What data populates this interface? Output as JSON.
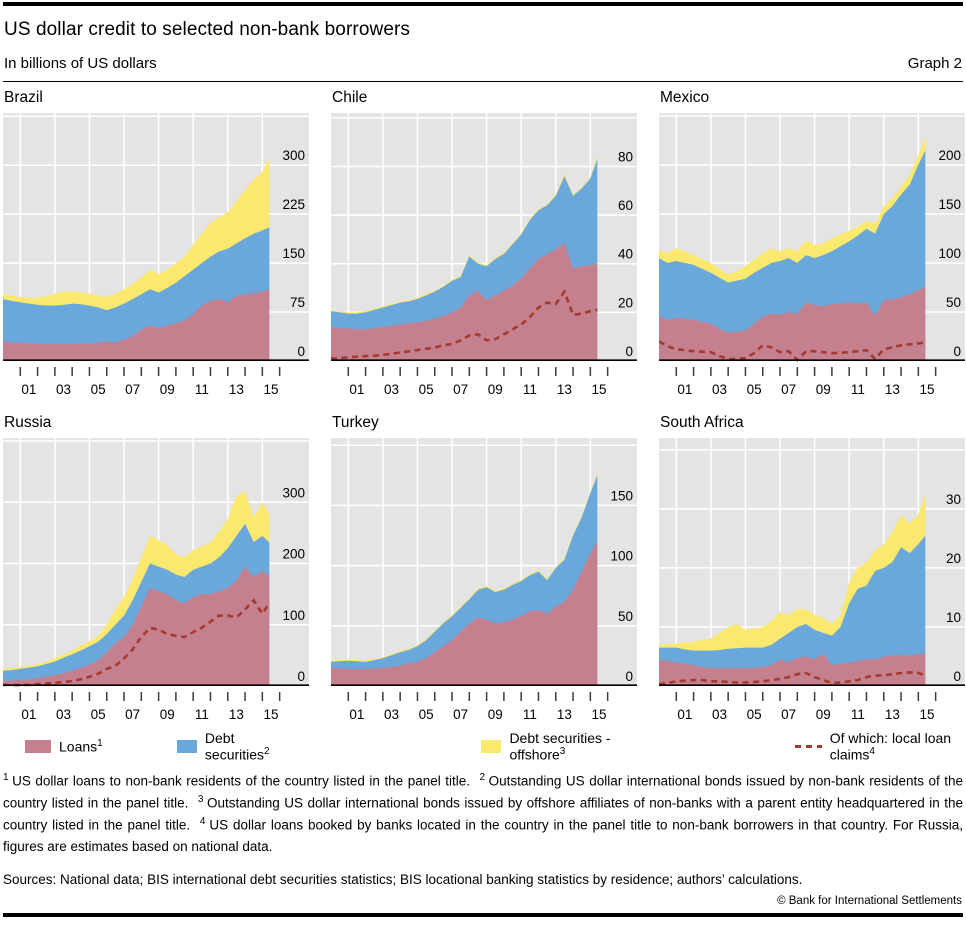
{
  "header": {
    "title": "US dollar credit to selected non-bank borrowers",
    "subtitle": "In billions of US dollars",
    "graph_label": "Graph 2"
  },
  "colors": {
    "loans": "#c5808f",
    "debt": "#6aa7da",
    "offshore": "#fae96e",
    "local": "#a53a2c",
    "plot_bg": "#e4e4e4",
    "grid": "#ffffff",
    "axis": "#000000",
    "tick": "#3c3c3c"
  },
  "legend": [
    {
      "label": "Loans",
      "sup": "1",
      "type": "swatch",
      "color": "#c5808f"
    },
    {
      "label": "Debt securities",
      "sup": "2",
      "type": "swatch",
      "color": "#6aa7da"
    },
    {
      "label": "Debt securities - offshore",
      "sup": "3",
      "type": "swatch",
      "color": "#fae96e"
    },
    {
      "label": "Of which: local loan claims",
      "sup": "4",
      "type": "dash",
      "color": "#a53a2c"
    }
  ],
  "footnotes": [
    {
      "sup": "1",
      "text": "US dollar loans to non-bank residents of the country listed in the panel title."
    },
    {
      "sup": "2",
      "text": "Outstanding US dollar international bonds issued by non-bank residents of the country listed in the panel title."
    },
    {
      "sup": "3",
      "text": "Outstanding US dollar international bonds issued by offshore affiliates of non-banks with a parent entity headquartered in the country listed in the panel title."
    },
    {
      "sup": "4",
      "text": "US dollar loans booked by banks located in the country in the panel title to non-bank borrowers in that country. For Russia, figures are estimates based on national data."
    }
  ],
  "sources": "Sources: National data; BIS international debt securities statistics; BIS locational banking statistics by residence; authors’ calculations.",
  "copyright": "© Bank for International Settlements",
  "xlabels": [
    "01",
    "03",
    "05",
    "07",
    "09",
    "11",
    "13",
    "15"
  ],
  "chart_data": [
    {
      "title": "Brazil",
      "type": "area",
      "stacked": true,
      "ymax": 380,
      "grid_step": 75,
      "ylabels": [
        0,
        75,
        150,
        225,
        300
      ],
      "x": [
        2000,
        2000.5,
        2001,
        2001.5,
        2002,
        2002.5,
        2003,
        2003.5,
        2004,
        2004.5,
        2005,
        2005.5,
        2006,
        2006.5,
        2007,
        2007.5,
        2008,
        2008.5,
        2009,
        2009.5,
        2010,
        2010.5,
        2011,
        2011.5,
        2012,
        2012.5,
        2013,
        2013.5,
        2014,
        2014.5,
        2015,
        2015.4
      ],
      "series": [
        {
          "name": "Loans",
          "values": [
            30,
            28,
            28,
            27,
            26,
            26,
            26,
            26,
            26,
            27,
            27,
            28,
            30,
            28,
            33,
            38,
            48,
            55,
            50,
            54,
            58,
            62,
            72,
            85,
            92,
            95,
            90,
            100,
            102,
            104,
            106,
            110
          ]
        },
        {
          "name": "Debt securities",
          "values": [
            95,
            92,
            90,
            88,
            86,
            85,
            85,
            86,
            88,
            87,
            85,
            82,
            78,
            82,
            88,
            95,
            102,
            110,
            105,
            112,
            120,
            130,
            140,
            150,
            160,
            168,
            172,
            180,
            188,
            195,
            200,
            205
          ]
        },
        {
          "name": "Debt securities - offshore",
          "values": [
            103,
            100,
            98,
            97,
            97,
            99,
            103,
            106,
            107,
            105,
            103,
            100,
            98,
            103,
            110,
            118,
            128,
            140,
            133,
            140,
            150,
            160,
            178,
            195,
            212,
            220,
            228,
            245,
            262,
            278,
            290,
            310
          ]
        }
      ],
      "local_line": null
    },
    {
      "title": "Chile",
      "type": "area",
      "stacked": true,
      "ymax": 102,
      "grid_step": 20,
      "ylabels": [
        0,
        20,
        40,
        60,
        80
      ],
      "x": [
        2000,
        2000.5,
        2001,
        2001.5,
        2002,
        2002.5,
        2003,
        2003.5,
        2004,
        2004.5,
        2005,
        2005.5,
        2006,
        2006.5,
        2007,
        2007.5,
        2008,
        2008.5,
        2009,
        2009.5,
        2010,
        2010.5,
        2011,
        2011.5,
        2012,
        2012.5,
        2013,
        2013.5,
        2014,
        2014.5,
        2015,
        2015.4
      ],
      "series": [
        {
          "name": "Loans",
          "values": [
            14,
            13.5,
            13.5,
            13,
            13,
            13.5,
            14,
            14.5,
            15,
            15.5,
            16,
            16.5,
            17.5,
            18.5,
            20,
            22,
            27,
            29,
            25,
            27,
            29,
            31,
            34,
            38,
            42,
            44,
            46,
            48.5,
            38,
            39,
            39.5,
            40
          ]
        },
        {
          "name": "Debt securities",
          "values": [
            20.5,
            20,
            19.5,
            19.5,
            20,
            21,
            22,
            23,
            24,
            24.5,
            25.5,
            27,
            28.5,
            30.5,
            33,
            34.5,
            43,
            40,
            39,
            42,
            44,
            48,
            52,
            58,
            62,
            64,
            68,
            76,
            68,
            71,
            75,
            83
          ]
        },
        {
          "name": "Debt securities - offshore",
          "values": [
            21,
            20.5,
            20,
            20,
            20.5,
            21.5,
            22.5,
            23.5,
            24.5,
            25,
            26,
            27.5,
            29,
            31,
            33.5,
            35,
            43.5,
            40.5,
            39.5,
            42.5,
            44.5,
            48.5,
            52.5,
            58.5,
            62.5,
            64.5,
            68.5,
            77,
            68.5,
            71.5,
            75.5,
            84
          ]
        }
      ],
      "local_line": {
        "name": "Of which: local loan claims",
        "values": [
          1,
          1.2,
          1.5,
          1.8,
          2,
          2.2,
          2.5,
          3,
          3.5,
          4,
          4.5,
          5,
          5.5,
          6.5,
          7,
          8.5,
          10.5,
          11,
          8.5,
          9,
          11,
          13,
          15,
          18,
          22,
          24,
          23.5,
          28.5,
          19,
          19.5,
          20.5,
          21
        ]
      }
    },
    {
      "title": "Mexico",
      "type": "area",
      "stacked": true,
      "ymax": 253,
      "grid_step": 50,
      "ylabels": [
        0,
        50,
        100,
        150,
        200
      ],
      "x": [
        2000,
        2000.5,
        2001,
        2001.5,
        2002,
        2002.5,
        2003,
        2003.5,
        2004,
        2004.5,
        2005,
        2005.5,
        2006,
        2006.5,
        2007,
        2007.5,
        2008,
        2008.5,
        2009,
        2009.5,
        2010,
        2010.5,
        2011,
        2011.5,
        2012,
        2012.5,
        2013,
        2013.5,
        2014,
        2014.5,
        2015,
        2015.4
      ],
      "series": [
        {
          "name": "Loans",
          "values": [
            46,
            42,
            44,
            43,
            42,
            40,
            38,
            33,
            29,
            30,
            31,
            38,
            45,
            48,
            47,
            50,
            48,
            60,
            57,
            56,
            58,
            59,
            60,
            59,
            60,
            46,
            62,
            63,
            65,
            68,
            72,
            76
          ]
        },
        {
          "name": "Debt securities",
          "values": [
            105,
            100,
            102,
            100,
            98,
            94,
            90,
            85,
            80,
            82,
            84,
            90,
            95,
            100,
            102,
            105,
            100,
            108,
            105,
            108,
            112,
            117,
            122,
            128,
            135,
            130,
            150,
            158,
            170,
            180,
            200,
            215
          ]
        },
        {
          "name": "Debt securities - offshore",
          "values": [
            113,
            110,
            115,
            112,
            108,
            104,
            100,
            94,
            88,
            92,
            97,
            103,
            110,
            115,
            112,
            115,
            112,
            123,
            118,
            120,
            125,
            129,
            133,
            137,
            143,
            140,
            158,
            166,
            178,
            190,
            210,
            228
          ]
        }
      ],
      "local_line": {
        "name": "Of which: local loan claims",
        "values": [
          20,
          15,
          12,
          11,
          10,
          9.5,
          9,
          5,
          2,
          2,
          3,
          8,
          16,
          14,
          9,
          10,
          1,
          10,
          10,
          9,
          8,
          8.5,
          9,
          10,
          11,
          2,
          12,
          14,
          16,
          17,
          18,
          19
        ]
      }
    },
    {
      "title": "Russia",
      "type": "area",
      "stacked": true,
      "ymax": 405,
      "grid_step": 100,
      "ylabels": [
        0,
        100,
        200,
        300
      ],
      "x": [
        2000,
        2000.5,
        2001,
        2001.5,
        2002,
        2002.5,
        2003,
        2003.5,
        2004,
        2004.5,
        2005,
        2005.5,
        2006,
        2006.5,
        2007,
        2007.5,
        2008,
        2008.5,
        2009,
        2009.5,
        2010,
        2010.5,
        2011,
        2011.5,
        2012,
        2012.5,
        2013,
        2013.5,
        2014,
        2014.5,
        2015,
        2015.4
      ],
      "series": [
        {
          "name": "Loans",
          "values": [
            8,
            9,
            10,
            11,
            13,
            15,
            18,
            21,
            25,
            30,
            35,
            42,
            55,
            70,
            80,
            100,
            130,
            160,
            155,
            150,
            140,
            135,
            145,
            150,
            150,
            155,
            160,
            172,
            195,
            178,
            188,
            180
          ]
        },
        {
          "name": "Debt securities",
          "values": [
            25,
            26,
            28,
            30,
            32,
            36,
            40,
            46,
            52,
            58,
            65,
            72,
            85,
            100,
            115,
            140,
            170,
            200,
            195,
            190,
            182,
            178,
            190,
            195,
            200,
            210,
            225,
            245,
            265,
            235,
            245,
            235
          ]
        },
        {
          "name": "Debt securities - offshore",
          "values": [
            28,
            29,
            31,
            33,
            36,
            40,
            45,
            52,
            58,
            66,
            73,
            82,
            100,
            125,
            145,
            175,
            210,
            245,
            238,
            230,
            215,
            210,
            222,
            228,
            235,
            252,
            272,
            310,
            318,
            275,
            300,
            280
          ]
        }
      ],
      "local_line": {
        "name": "Of which: local loan claims",
        "values": [
          2,
          1.5,
          1.5,
          2,
          3,
          4,
          5,
          6.5,
          8,
          11,
          15,
          20,
          28,
          33,
          45,
          60,
          80,
          95,
          92,
          85,
          82,
          80,
          88,
          95,
          105,
          115,
          115,
          112,
          125,
          140,
          118,
          135
        ]
      }
    },
    {
      "title": "Turkey",
      "type": "area",
      "stacked": true,
      "ymax": 206,
      "grid_step": 50,
      "ylabels": [
        0,
        50,
        100,
        150
      ],
      "x": [
        2000,
        2000.5,
        2001,
        2001.5,
        2002,
        2002.5,
        2003,
        2003.5,
        2004,
        2004.5,
        2005,
        2005.5,
        2006,
        2006.5,
        2007,
        2007.5,
        2008,
        2008.5,
        2009,
        2009.5,
        2010,
        2010.5,
        2011,
        2011.5,
        2012,
        2012.5,
        2013,
        2013.5,
        2014,
        2014.5,
        2015,
        2015.4
      ],
      "series": [
        {
          "name": "Loans",
          "values": [
            15,
            14.5,
            14,
            14,
            14,
            14.5,
            15,
            16,
            17,
            19,
            20,
            23,
            28,
            33,
            38,
            45,
            52,
            57,
            55,
            52,
            53,
            55,
            58,
            62,
            63,
            60,
            66,
            70,
            80,
            95,
            110,
            120
          ]
        },
        {
          "name": "Debt securities",
          "values": [
            20,
            20.5,
            21,
            20.5,
            20,
            21.5,
            23,
            25.5,
            28,
            30,
            33,
            38,
            45,
            52,
            58,
            65,
            72,
            80,
            82,
            78,
            80,
            84,
            87,
            92,
            95,
            88,
            98,
            105,
            125,
            140,
            160,
            175
          ]
        },
        {
          "name": "Debt securities - offshore",
          "values": [
            21,
            21.5,
            22,
            21.5,
            21,
            22.5,
            24,
            26.5,
            29,
            31,
            34,
            39,
            46,
            53,
            59,
            66,
            73,
            81,
            83,
            79,
            81,
            85,
            88,
            93,
            96,
            89,
            99,
            106,
            126,
            141,
            161,
            177
          ]
        }
      ],
      "local_line": null
    },
    {
      "title": "South Africa",
      "type": "area",
      "stacked": true,
      "ymax": 42,
      "grid_step": 10,
      "ylabels": [
        0,
        10,
        20,
        30
      ],
      "x": [
        2000,
        2000.5,
        2001,
        2001.5,
        2002,
        2002.5,
        2003,
        2003.5,
        2004,
        2004.5,
        2005,
        2005.5,
        2006,
        2006.5,
        2007,
        2007.5,
        2008,
        2008.5,
        2009,
        2009.5,
        2010,
        2010.5,
        2011,
        2011.5,
        2012,
        2012.5,
        2013,
        2013.5,
        2014,
        2014.5,
        2015,
        2015.4
      ],
      "series": [
        {
          "name": "Loans",
          "values": [
            4.5,
            4.2,
            4,
            3.8,
            3.5,
            3.2,
            3,
            3,
            3,
            3,
            3,
            3.1,
            3.2,
            3.5,
            4.5,
            4,
            4.8,
            5,
            4.5,
            5.5,
            3.5,
            3.8,
            4,
            4.2,
            4.5,
            4.5,
            5,
            5.2,
            5.3,
            5.2,
            5.4,
            5.5
          ]
        },
        {
          "name": "Debt securities",
          "values": [
            6.5,
            6.5,
            6.5,
            6.2,
            6,
            6,
            6,
            6.1,
            6.3,
            6.4,
            6.5,
            6.5,
            6.5,
            7,
            8,
            9,
            10,
            10.5,
            9.5,
            9,
            8.5,
            10,
            14,
            16.5,
            17,
            19.5,
            20,
            21,
            23.5,
            22.5,
            24,
            25.5
          ]
        },
        {
          "name": "Debt securities - offshore",
          "values": [
            7,
            7.1,
            7.2,
            7.4,
            7.5,
            7.8,
            8,
            9,
            10,
            10.5,
            9.5,
            9.7,
            10,
            11,
            12.5,
            12,
            13,
            13,
            12,
            11.5,
            10.5,
            12,
            17.5,
            20,
            21,
            23,
            24,
            26,
            29,
            27.5,
            29,
            32.5
          ]
        }
      ],
      "local_line": {
        "name": "Of which: local loan claims",
        "values": [
          0.3,
          0.5,
          0.8,
          0.9,
          1,
          1,
          0.8,
          0.8,
          0.7,
          0.6,
          0.6,
          0.7,
          0.8,
          1,
          1.2,
          1.5,
          2,
          2.2,
          1.5,
          1,
          0.5,
          0.6,
          0.8,
          1,
          1.5,
          1.8,
          1.8,
          2,
          2.2,
          2.3,
          2.2,
          1.8
        ]
      }
    }
  ]
}
